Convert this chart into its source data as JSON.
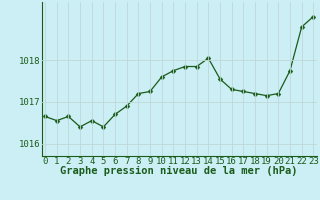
{
  "x": [
    0,
    1,
    2,
    3,
    4,
    5,
    6,
    7,
    8,
    9,
    10,
    11,
    12,
    13,
    14,
    15,
    16,
    17,
    18,
    19,
    20,
    21,
    22,
    23
  ],
  "y": [
    1016.65,
    1016.55,
    1016.65,
    1016.4,
    1016.55,
    1016.4,
    1016.7,
    1016.9,
    1017.2,
    1017.25,
    1017.6,
    1017.75,
    1017.85,
    1017.85,
    1018.05,
    1017.55,
    1017.3,
    1017.25,
    1017.2,
    1017.15,
    1017.2,
    1017.75,
    1018.8,
    1019.05
  ],
  "line_color": "#1a5c1a",
  "marker": "D",
  "marker_size": 2.5,
  "bg_color": "#cceef5",
  "grid_color": "#c0d8d8",
  "xlabel": "Graphe pression niveau de la mer (hPa)",
  "xlabel_fontsize": 7.5,
  "tick_color": "#1a5c1a",
  "tick_fontsize": 6.5,
  "ylim": [
    1015.7,
    1019.4
  ],
  "yticks": [
    1016,
    1017,
    1018
  ],
  "xlim": [
    -0.3,
    23.3
  ],
  "xticks": [
    0,
    1,
    2,
    3,
    4,
    5,
    6,
    7,
    8,
    9,
    10,
    11,
    12,
    13,
    14,
    15,
    16,
    17,
    18,
    19,
    20,
    21,
    22,
    23
  ]
}
